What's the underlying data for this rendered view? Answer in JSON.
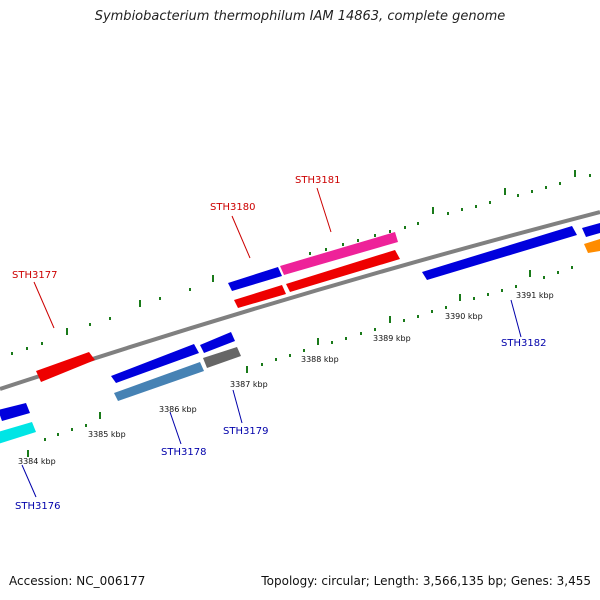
{
  "title": "Symbiobacterium thermophilum IAM 14863, complete genome",
  "footer": {
    "accession": "Accession: NC_006177",
    "summary": "Topology: circular; Length: 3,566,135 bp; Genes: 3,455"
  },
  "ticks": {
    "labels": [
      "3384 kbp",
      "3385 kbp",
      "3386 kbp",
      "3387 kbp",
      "3388 kbp",
      "3389 kbp",
      "3390 kbp",
      "3391 kbp"
    ]
  },
  "gene_labels": {
    "forward": [
      "STH3177",
      "STH3180",
      "STH3181"
    ],
    "reverse": [
      "STH3176",
      "STH3178",
      "STH3179",
      "STH3182"
    ]
  },
  "colors": {
    "forward_label": "#cc0000",
    "reverse_label": "#0000aa",
    "backbone": "#808080",
    "tick": "#1a7a1a",
    "blue": "#0000dd",
    "red": "#ee0000",
    "pink": "#ee2299",
    "steelblue": "#4682b4",
    "gray": "#666666",
    "cyan": "#00e5e5",
    "orange": "#ff8c00"
  }
}
